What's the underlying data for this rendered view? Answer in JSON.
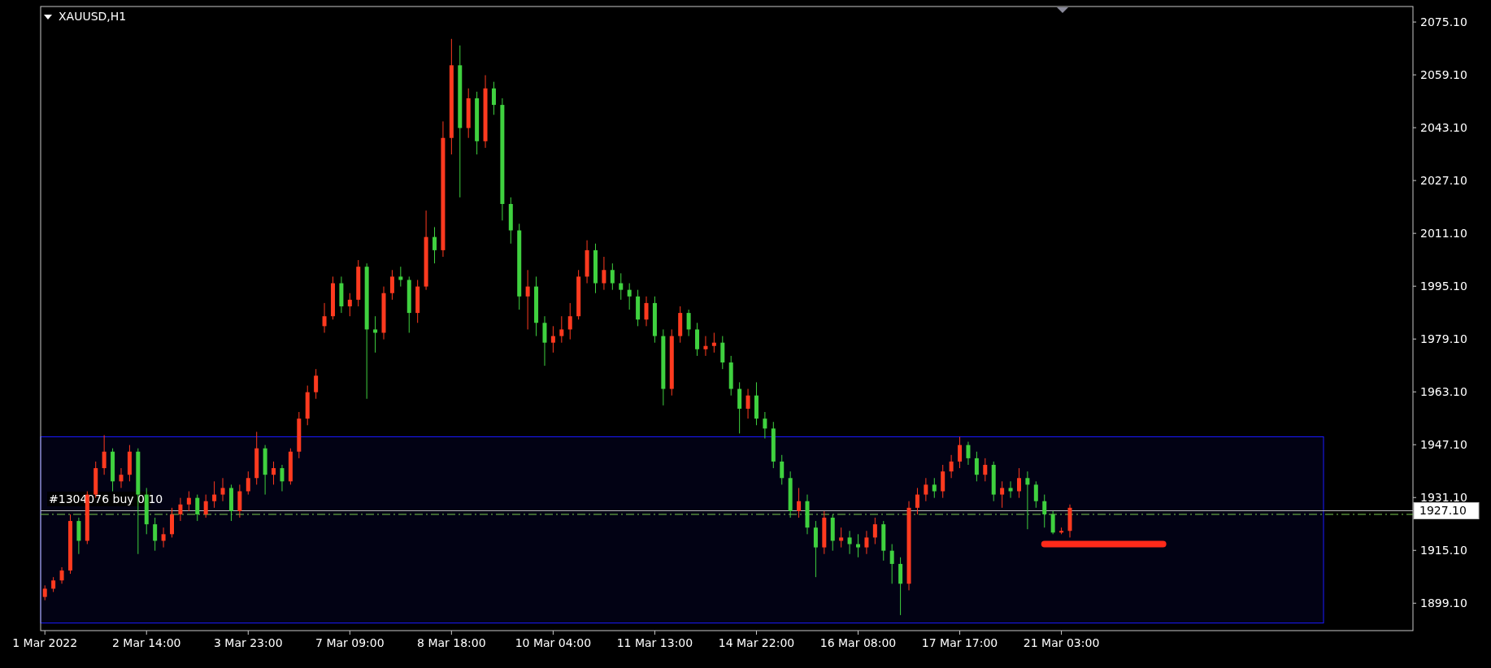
{
  "chart_data": {
    "type": "candlestick",
    "title": "XAUUSD,H1",
    "categories": [
      "1 Mar 2022",
      null,
      null,
      null,
      null,
      null,
      null,
      null,
      null,
      null,
      null,
      null,
      "2 Mar 14:00",
      null,
      null,
      null,
      null,
      null,
      null,
      null,
      null,
      null,
      null,
      null,
      "3 Mar 23:00",
      null,
      null,
      null,
      null,
      null,
      null,
      null,
      null,
      null,
      null,
      null,
      "7 Mar 09:00",
      null,
      null,
      null,
      null,
      null,
      null,
      null,
      null,
      null,
      null,
      null,
      "8 Mar 18:00",
      null,
      null,
      null,
      null,
      null,
      null,
      null,
      null,
      null,
      null,
      null,
      "10 Mar 04:00",
      null,
      null,
      null,
      null,
      null,
      null,
      null,
      null,
      null,
      null,
      null,
      "11 Mar 13:00",
      null,
      null,
      null,
      null,
      null,
      null,
      null,
      null,
      null,
      null,
      null,
      "14 Mar 22:00",
      null,
      null,
      null,
      null,
      null,
      null,
      null,
      null,
      null,
      null,
      null,
      "16 Mar 08:00",
      null,
      null,
      null,
      null,
      null,
      null,
      null,
      null,
      null,
      null,
      null,
      "17 Mar 17:00",
      null,
      null,
      null,
      null,
      null,
      null,
      null,
      null,
      null,
      null,
      null,
      "21 Mar 03:00",
      null,
      null,
      null,
      null,
      null,
      null,
      null,
      null,
      null,
      null,
      null,
      null,
      null,
      null,
      null,
      null,
      null,
      null,
      null,
      null,
      null,
      null,
      null,
      null,
      null,
      null,
      null,
      null,
      null,
      null,
      null,
      null,
      null,
      null,
      null,
      null,
      null,
      null,
      null,
      null,
      null
    ],
    "series": [
      {
        "colors": [
          "#ff3a1f",
          "#ff3a1f",
          "#ff3a1f",
          "#ff3a1f",
          "#3fd13f",
          "#ff3a1f",
          "#ff3a1f",
          "#ff3a1f",
          "#3fd13f",
          "#ff3a1f",
          "#ff3a1f",
          "#3fd13f",
          "#3fd13f",
          "#3fd13f",
          "#ff3a1f",
          "#ff3a1f",
          "#ff3a1f",
          "#ff3a1f",
          "#3fd13f",
          "#ff3a1f",
          "#ff3a1f",
          "#ff3a1f",
          "#3fd13f",
          "#ff3a1f",
          "#ff3a1f",
          "#ff3a1f",
          "#3fd13f",
          "#ff3a1f",
          "#3fd13f",
          "#ff3a1f",
          "#ff3a1f",
          "#ff3a1f",
          "#ff3a1f",
          "#ff3a1f",
          "#ff3a1f",
          "#3fd13f",
          "#ff3a1f",
          "#ff3a1f",
          "#3fd13f",
          "#3fd13f",
          "#ff3a1f",
          "#ff3a1f",
          "#3fd13f",
          "#3fd13f",
          "#ff3a1f",
          "#ff3a1f",
          "#3fd13f",
          "#ff3a1f",
          "#ff3a1f",
          "#3fd13f",
          "#ff3a1f",
          "#3fd13f",
          "#ff3a1f",
          "#3fd13f",
          "#3fd13f",
          "#3fd13f",
          "#3fd13f",
          "#ff3a1f",
          "#3fd13f",
          "#3fd13f",
          "#ff3a1f",
          "#ff3a1f",
          "#ff3a1f",
          "#ff3a1f",
          "#ff3a1f",
          "#3fd13f",
          "#ff3a1f",
          "#3fd13f",
          "#3fd13f",
          "#3fd13f",
          "#3fd13f",
          "#ff3a1f",
          "#3fd13f",
          "#3fd13f",
          "#ff3a1f",
          "#ff3a1f",
          "#3fd13f",
          "#3fd13f",
          "#ff3a1f",
          "#ff3a1f",
          "#3fd13f",
          "#3fd13f",
          "#3fd13f",
          "#ff3a1f",
          "#3fd13f",
          "#3fd13f",
          "#3fd13f",
          "#3fd13f",
          "#3fd13f",
          "#ff3a1f",
          "#3fd13f",
          "#3fd13f",
          "#ff3a1f",
          "#3fd13f",
          "#ff3a1f",
          "#3fd13f",
          "#3fd13f",
          "#ff3a1f",
          "#ff3a1f",
          "#3fd13f",
          "#3fd13f",
          "#3fd13f",
          "#ff3a1f",
          "#ff3a1f",
          "#ff3a1f",
          "#3fd13f",
          "#ff3a1f",
          "#ff3a1f",
          "#ff3a1f",
          "#3fd13f",
          "#3fd13f",
          "#ff3a1f",
          "#3fd13f",
          "#ff3a1f",
          "#3fd13f",
          "#ff3a1f",
          "#3fd13f",
          "#3fd13f",
          "#3fd13f",
          "#3fd13f",
          "#ff3a1f",
          "#ff3a1f",
          null,
          null,
          null,
          null,
          null,
          null,
          null,
          null,
          null,
          null,
          null,
          null,
          null,
          null,
          null,
          null,
          null,
          null,
          null,
          null,
          null,
          null,
          null,
          null,
          null,
          null,
          null,
          null,
          null,
          null,
          null,
          null,
          null,
          null,
          null,
          null,
          null,
          null,
          null,
          null
        ],
        "ohlc": [
          [
            1901,
            1904.5,
            1900,
            1903.5
          ],
          [
            1903.5,
            1907,
            1902.5,
            1906
          ],
          [
            1906,
            1910,
            1905,
            1909
          ],
          [
            1909,
            1926,
            1908,
            1924
          ],
          [
            1924,
            1925,
            1914,
            1918
          ],
          [
            1918,
            1933,
            1917,
            1932
          ],
          [
            1932,
            1942,
            1931,
            1940
          ],
          [
            1940,
            1950,
            1938,
            1945
          ],
          [
            1945,
            1946,
            1933,
            1936
          ],
          [
            1936,
            1940,
            1934,
            1938
          ],
          [
            1938,
            1947,
            1936,
            1945
          ],
          [
            1945,
            1946,
            1914,
            1932
          ],
          [
            1932,
            1934,
            1920,
            1923
          ],
          [
            1923,
            1925,
            1915,
            1918
          ],
          [
            1918,
            1922,
            1916,
            1920
          ],
          [
            1920,
            1928,
            1919,
            1926
          ],
          [
            1926,
            1931,
            1924,
            1929
          ],
          [
            1929,
            1933,
            1927,
            1931
          ],
          [
            1931,
            1932,
            1924,
            1926
          ],
          [
            1926,
            1932,
            1925,
            1930
          ],
          [
            1930,
            1936,
            1928,
            1932
          ],
          [
            1932,
            1937,
            1930,
            1934
          ],
          [
            1934,
            1935,
            1924,
            1927
          ],
          [
            1927,
            1935,
            1925,
            1933
          ],
          [
            1933,
            1939,
            1932,
            1937
          ],
          [
            1937,
            1951,
            1935,
            1946
          ],
          [
            1946,
            1947,
            1932,
            1938
          ],
          [
            1938,
            1942,
            1935,
            1940
          ],
          [
            1940,
            1941,
            1933,
            1936
          ],
          [
            1936,
            1946,
            1935,
            1945
          ],
          [
            1945,
            1957,
            1943,
            1955
          ],
          [
            1955,
            1965,
            1953,
            1963
          ],
          [
            1963,
            1970,
            1961,
            1968
          ],
          [
            1983,
            1990,
            1981,
            1986
          ],
          [
            1986,
            1998,
            1985,
            1996
          ],
          [
            1996,
            1998,
            1987,
            1989
          ],
          [
            1989,
            1993,
            1986,
            1991
          ],
          [
            1991,
            2003,
            1989,
            2001
          ],
          [
            2001,
            2002,
            1961,
            1982
          ],
          [
            1982,
            1986,
            1975,
            1981
          ],
          [
            1981,
            1995,
            1979,
            1993
          ],
          [
            1993,
            2000,
            1991,
            1998
          ],
          [
            1998,
            2001,
            1995,
            1997
          ],
          [
            1997,
            1998,
            1981,
            1987
          ],
          [
            1987,
            1997,
            1984,
            1995
          ],
          [
            1995,
            2018,
            1994,
            2010
          ],
          [
            2010,
            2013,
            2002,
            2006
          ],
          [
            2006,
            2045,
            2004,
            2040
          ],
          [
            2040,
            2070,
            2035,
            2062
          ],
          [
            2062,
            2068,
            2022,
            2043
          ],
          [
            2043,
            2055,
            2040,
            2052
          ],
          [
            2052,
            2054,
            2035,
            2039
          ],
          [
            2039,
            2059,
            2037,
            2055
          ],
          [
            2055,
            2057,
            2047,
            2050
          ],
          [
            2050,
            2052,
            2015,
            2020
          ],
          [
            2020,
            2022,
            2008,
            2012
          ],
          [
            2012,
            2014,
            1988,
            1992
          ],
          [
            1992,
            2000,
            1982,
            1995
          ],
          [
            1995,
            1998,
            1980,
            1984
          ],
          [
            1984,
            1986,
            1971,
            1978
          ],
          [
            1978,
            1983,
            1975,
            1980
          ],
          [
            1980,
            1986,
            1978,
            1982
          ],
          [
            1982,
            1990,
            1979,
            1986
          ],
          [
            1986,
            2000,
            1985,
            1998
          ],
          [
            1998,
            2009,
            1996,
            2006
          ],
          [
            2006,
            2008,
            1993,
            1996
          ],
          [
            1996,
            2004,
            1994,
            2000
          ],
          [
            2000,
            2002,
            1994,
            1996
          ],
          [
            1996,
            1999,
            1991,
            1994
          ],
          [
            1994,
            1996,
            1988,
            1992
          ],
          [
            1992,
            1994,
            1983,
            1985
          ],
          [
            1985,
            1992,
            1983,
            1990
          ],
          [
            1990,
            1992,
            1978,
            1980
          ],
          [
            1980,
            1982,
            1959,
            1964
          ],
          [
            1964,
            1982,
            1962,
            1980
          ],
          [
            1980,
            1989,
            1978,
            1987
          ],
          [
            1987,
            1988,
            1980,
            1982
          ],
          [
            1982,
            1984,
            1974,
            1976
          ],
          [
            1976,
            1980,
            1974,
            1977
          ],
          [
            1977,
            1981,
            1975,
            1978
          ],
          [
            1978,
            1980,
            1970,
            1972
          ],
          [
            1972,
            1974,
            1962,
            1964
          ],
          [
            1964,
            1966,
            1950.5,
            1958
          ],
          [
            1958,
            1964,
            1955,
            1962
          ],
          [
            1962,
            1966,
            1953,
            1955
          ],
          [
            1955,
            1957,
            1949,
            1952
          ],
          [
            1952,
            1954,
            1940,
            1942
          ],
          [
            1942,
            1944,
            1935,
            1937
          ],
          [
            1937,
            1939,
            1925,
            1927
          ],
          [
            1927,
            1934,
            1925,
            1930
          ],
          [
            1930,
            1932,
            1920,
            1922
          ],
          [
            1922,
            1924,
            1907,
            1916
          ],
          [
            1916,
            1927,
            1914,
            1925
          ],
          [
            1925,
            1926,
            1915,
            1918
          ],
          [
            1918,
            1922,
            1916,
            1919
          ],
          [
            1919,
            1921,
            1914,
            1917
          ],
          [
            1917,
            1920,
            1913,
            1916
          ],
          [
            1916,
            1921,
            1914,
            1919
          ],
          [
            1919,
            1925,
            1917,
            1923
          ],
          [
            1923,
            1924,
            1912,
            1915
          ],
          [
            1915,
            1917,
            1905,
            1911
          ],
          [
            1911,
            1913,
            1895.5,
            1905
          ],
          [
            1905,
            1930,
            1903,
            1928
          ],
          [
            1928,
            1934,
            1926,
            1932
          ],
          [
            1932,
            1937,
            1930,
            1935
          ],
          [
            1935,
            1937,
            1931,
            1933
          ],
          [
            1933,
            1941,
            1931,
            1939
          ],
          [
            1939,
            1944,
            1937,
            1942
          ],
          [
            1942,
            1949.5,
            1940,
            1947
          ],
          [
            1947,
            1948,
            1941,
            1943
          ],
          [
            1943,
            1945,
            1936,
            1938
          ],
          [
            1938,
            1943,
            1936,
            1941
          ],
          [
            1941,
            1942,
            1930,
            1932
          ],
          [
            1932,
            1936,
            1928,
            1934
          ],
          [
            1934,
            1936,
            1931,
            1933
          ],
          [
            1933,
            1940,
            1931,
            1937
          ],
          [
            1937,
            1939,
            1921.5,
            1935
          ],
          [
            1935,
            1936,
            1928,
            1930
          ],
          [
            1930,
            1932,
            1922,
            1926
          ],
          [
            1926,
            1927,
            1920,
            1920.5
          ],
          [
            1920.5,
            1922,
            1920,
            1921
          ],
          [
            1921,
            1929,
            1919,
            1928
          ],
          null,
          null,
          null,
          null,
          null,
          null,
          null,
          null,
          null,
          null,
          null,
          null,
          null,
          null,
          null,
          null,
          null,
          null,
          null,
          null,
          null,
          null,
          null,
          null,
          null,
          null,
          null,
          null,
          null,
          null,
          null,
          null,
          null,
          null,
          null,
          null,
          null,
          null,
          null,
          null
        ]
      },
      {
        "type": "line",
        "color": "#ff2a1a",
        "values": [
          null,
          null,
          null,
          null,
          null,
          null,
          null,
          null,
          null,
          null,
          null,
          null,
          null,
          null,
          null,
          null,
          null,
          null,
          null,
          null,
          null,
          null,
          null,
          null,
          null,
          null,
          null,
          null,
          null,
          null,
          null,
          null,
          null,
          null,
          null,
          null,
          null,
          null,
          null,
          null,
          null,
          null,
          null,
          null,
          null,
          null,
          null,
          null,
          null,
          null,
          null,
          null,
          null,
          null,
          null,
          null,
          null,
          null,
          null,
          null,
          null,
          null,
          null,
          null,
          null,
          null,
          null,
          null,
          null,
          null,
          null,
          null,
          null,
          null,
          null,
          null,
          null,
          null,
          null,
          null,
          null,
          null,
          null,
          null,
          null,
          null,
          null,
          null,
          null,
          null,
          null,
          null,
          null,
          null,
          null,
          null,
          null,
          null,
          null,
          null,
          null,
          null,
          null,
          null,
          null,
          null,
          null,
          null,
          null,
          null,
          null,
          null,
          null,
          null,
          null,
          null,
          null,
          null,
          1917,
          1917,
          1917,
          1917,
          1917,
          1917,
          1917,
          1917,
          1917,
          1917,
          1917,
          1917,
          1917,
          1917,
          1917,
          null,
          null,
          null,
          null,
          null,
          null,
          null,
          null,
          null,
          null,
          null,
          null,
          null,
          null,
          null,
          null,
          null,
          null,
          null,
          null,
          null,
          null,
          null,
          null,
          null,
          null,
          null,
          null,
          null
        ]
      }
    ],
    "ylim": [
      1890.8,
      2079.8
    ],
    "yticks": [
      {
        "value": 1899.1,
        "label": "1899.10"
      },
      {
        "value": 1915.1,
        "label": "1915.10"
      },
      {
        "value": 1931.1,
        "label": "1931.10"
      },
      {
        "value": 1947.1,
        "label": "1947.10"
      },
      {
        "value": 1963.1,
        "label": "1963.10"
      },
      {
        "value": 1979.1,
        "label": "1979.10"
      },
      {
        "value": 1995.1,
        "label": "1995.10"
      },
      {
        "value": 2011.1,
        "label": "2011.10"
      },
      {
        "value": 2027.1,
        "label": "2027.10"
      },
      {
        "value": 2043.1,
        "label": "2043.10"
      },
      {
        "value": 2059.1,
        "label": "2059.10"
      },
      {
        "value": 2075.1,
        "label": "2075.10"
      }
    ],
    "ref_lines": [
      {
        "axis": "y",
        "value": 1927.1,
        "label": "1927.10",
        "color": "#c0c0c0",
        "line_style": "solid"
      },
      {
        "axis": "y",
        "value": 1926,
        "label": "#1304076 buy 0.10",
        "color": "#7ccd4f",
        "line_style": "dashed"
      }
    ],
    "bands": [
      {
        "axis": "y",
        "from": 1893.1,
        "to": 1949.5,
        "color": "#1a1aff"
      }
    ]
  }
}
